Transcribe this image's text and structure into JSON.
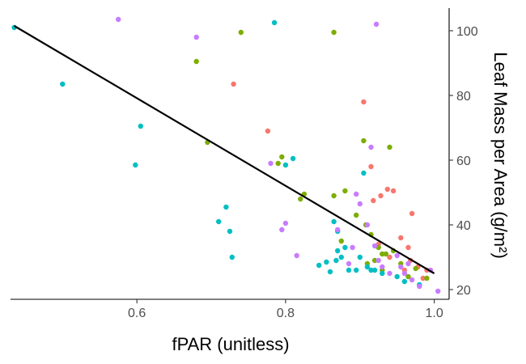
{
  "chart_data": {
    "type": "scatter",
    "xlabel": "fPAR (unitless)",
    "ylabel": "Leaf Mass per Area (g/m²)",
    "xlim": [
      0.43,
      1.02
    ],
    "ylim": [
      17,
      107
    ],
    "x_ticks": [
      0.6,
      0.8,
      1.0
    ],
    "x_tick_labels": [
      "0.6",
      "0.8",
      "1.0"
    ],
    "y_ticks": [
      20,
      40,
      60,
      80,
      100
    ],
    "y_tick_labels": [
      "20",
      "40",
      "60",
      "80",
      "100"
    ],
    "y_axis_position": "right",
    "grid": false,
    "legend": "none",
    "colors": {
      "series_a": "#F8766D",
      "series_b": "#7CAE00",
      "series_c": "#00BFC4",
      "series_d": "#C77CFF",
      "trend_line": "#000000",
      "axis": "#000000"
    },
    "series": [
      {
        "color": "#F8766D",
        "points": [
          [
            0.73,
            83.5
          ],
          [
            0.776,
            69
          ],
          [
            0.905,
            78
          ],
          [
            0.915,
            58
          ],
          [
            0.918,
            47.5
          ],
          [
            0.928,
            49
          ],
          [
            0.937,
            51
          ],
          [
            0.945,
            50.5
          ],
          [
            0.955,
            36
          ],
          [
            0.965,
            33
          ],
          [
            0.968,
            29
          ],
          [
            0.97,
            43.5
          ],
          [
            0.978,
            27
          ],
          [
            0.99,
            26
          ],
          [
            0.985,
            23.5
          ],
          [
            0.96,
            26
          ],
          [
            0.94,
            30
          ],
          [
            0.925,
            34
          ]
        ]
      },
      {
        "color": "#7CAE00",
        "points": [
          [
            0.68,
            90.5
          ],
          [
            0.695,
            65.5
          ],
          [
            0.74,
            99.5
          ],
          [
            0.79,
            59
          ],
          [
            0.795,
            61
          ],
          [
            0.82,
            48
          ],
          [
            0.825,
            49.5
          ],
          [
            0.865,
            99.5
          ],
          [
            0.865,
            49
          ],
          [
            0.875,
            35
          ],
          [
            0.88,
            50.5
          ],
          [
            0.895,
            43
          ],
          [
            0.905,
            66
          ],
          [
            0.908,
            40
          ],
          [
            0.915,
            37
          ],
          [
            0.92,
            29
          ],
          [
            0.925,
            33
          ],
          [
            0.93,
            26
          ],
          [
            0.935,
            31
          ],
          [
            0.94,
            64
          ],
          [
            0.945,
            32
          ],
          [
            0.955,
            28
          ],
          [
            0.965,
            24
          ],
          [
            0.975,
            26.5
          ],
          [
            0.99,
            23.5
          ],
          [
            0.93,
            31
          ],
          [
            0.91,
            28
          ]
        ]
      },
      {
        "color": "#00BFC4",
        "points": [
          [
            0.435,
            101
          ],
          [
            0.5,
            83.5
          ],
          [
            0.598,
            58.5
          ],
          [
            0.605,
            70.5
          ],
          [
            0.71,
            41
          ],
          [
            0.72,
            45.5
          ],
          [
            0.725,
            38
          ],
          [
            0.728,
            30
          ],
          [
            0.785,
            102.5
          ],
          [
            0.8,
            58.5
          ],
          [
            0.81,
            60.5
          ],
          [
            0.845,
            27.5
          ],
          [
            0.855,
            28.5
          ],
          [
            0.86,
            25.5
          ],
          [
            0.865,
            41
          ],
          [
            0.868,
            29
          ],
          [
            0.87,
            32
          ],
          [
            0.875,
            30
          ],
          [
            0.88,
            33
          ],
          [
            0.885,
            26
          ],
          [
            0.895,
            26
          ],
          [
            0.9,
            30
          ],
          [
            0.905,
            56
          ],
          [
            0.91,
            27
          ],
          [
            0.915,
            26
          ],
          [
            0.92,
            26
          ],
          [
            0.93,
            25
          ],
          [
            0.95,
            24
          ],
          [
            0.96,
            22.5
          ],
          [
            0.98,
            21.5
          ],
          [
            0.87,
            38
          ]
        ]
      },
      {
        "color": "#C77CFF",
        "points": [
          [
            0.575,
            103.5
          ],
          [
            0.68,
            98
          ],
          [
            0.78,
            59
          ],
          [
            0.795,
            38.5
          ],
          [
            0.8,
            40.5
          ],
          [
            0.815,
            30.5
          ],
          [
            0.87,
            38.5
          ],
          [
            0.885,
            28
          ],
          [
            0.89,
            33
          ],
          [
            0.895,
            49.5
          ],
          [
            0.9,
            46.5
          ],
          [
            0.91,
            40
          ],
          [
            0.915,
            64
          ],
          [
            0.92,
            33.5
          ],
          [
            0.922,
            102
          ],
          [
            0.925,
            29
          ],
          [
            0.94,
            25
          ],
          [
            0.95,
            30.5
          ],
          [
            0.955,
            27
          ],
          [
            0.96,
            25
          ],
          [
            0.97,
            23
          ],
          [
            0.98,
            21
          ],
          [
            0.995,
            26
          ],
          [
            1.005,
            19.5
          ],
          [
            0.93,
            27
          ],
          [
            0.965,
            28
          ]
        ]
      }
    ],
    "trend_line": [
      [
        0.435,
        101.5
      ],
      [
        1.0,
        25
      ]
    ]
  }
}
